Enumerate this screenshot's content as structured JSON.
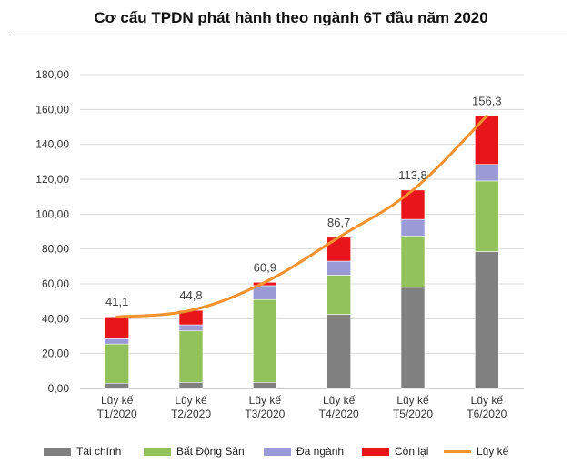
{
  "chart_data": {
    "type": "bar",
    "title": "Cơ cấu TPDN phát hành theo ngành 6T đầu năm 2020",
    "categories": [
      [
        "Lũy kế",
        "T1/2020"
      ],
      [
        "Lũy kế",
        "T2/2020"
      ],
      [
        "Lũy kế",
        "T3/2020"
      ],
      [
        "Lũy kế",
        "T4/2020"
      ],
      [
        "Lũy kế",
        "T5/2020"
      ],
      [
        "Lũy kế",
        "T6/2020"
      ]
    ],
    "stacked": true,
    "series": [
      {
        "name": "Tài chính",
        "color": "#808080",
        "values": [
          3.0,
          3.5,
          3.5,
          42.5,
          58.0,
          78.5
        ]
      },
      {
        "name": "Bất Động Sản",
        "color": "#92c25a",
        "values": [
          22.5,
          29.5,
          47.5,
          22.5,
          29.5,
          40.5
        ]
      },
      {
        "name": "Đa ngành",
        "color": "#9a9ad6",
        "values": [
          3.0,
          3.5,
          8.0,
          8.0,
          9.5,
          9.5
        ]
      },
      {
        "name": "Còn lại",
        "color": "#e8151b",
        "values": [
          12.6,
          8.3,
          1.9,
          13.7,
          16.8,
          27.8
        ]
      }
    ],
    "line": {
      "name": "Lũy kế",
      "color": "#f3922e",
      "values": [
        41.1,
        44.8,
        60.9,
        86.7,
        113.8,
        156.3
      ],
      "labels": [
        "41,1",
        "44,8",
        "60,9",
        "86,7",
        "113,8",
        "156,3"
      ]
    },
    "ylim": [
      0,
      180
    ],
    "yticks": [
      {
        "value": 0,
        "label": "0,00"
      },
      {
        "value": 20,
        "label": "20,00"
      },
      {
        "value": 40,
        "label": "40,00"
      },
      {
        "value": 60,
        "label": "60,00"
      },
      {
        "value": 80,
        "label": "80,00"
      },
      {
        "value": 100,
        "label": "100,00"
      },
      {
        "value": 120,
        "label": "120,00"
      },
      {
        "value": 140,
        "label": "140,00"
      },
      {
        "value": 160,
        "label": "160,00"
      },
      {
        "value": 180,
        "label": "180,00"
      }
    ],
    "grid": true,
    "legend_position": "bottom"
  }
}
